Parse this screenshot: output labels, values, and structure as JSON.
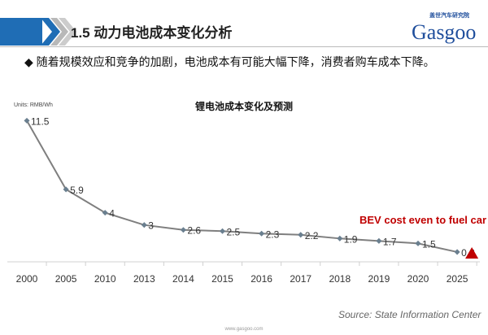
{
  "header": {
    "title": "1.5 动力电池成本变化分析",
    "logo_text": "Gasgoo",
    "logo_subtitle": "盖世汽车研究院"
  },
  "bullet": "◆ 随着规模效应和竞争的加剧，电池成本有可能大幅下降，消费者购车成本下降。",
  "chart_data": {
    "type": "line",
    "title": "锂电池成本变化及预测",
    "units": "Units: RMB/Wh",
    "categories": [
      "2000",
      "2005",
      "2010",
      "2013",
      "2014",
      "2015",
      "2016",
      "2017",
      "2018",
      "2019",
      "2020",
      "2025"
    ],
    "values": [
      11.5,
      5.9,
      4,
      3,
      2.6,
      2.5,
      2.3,
      2.2,
      1.9,
      1.7,
      1.5,
      0.8
    ],
    "labels": [
      "11.5",
      "5.9",
      "4",
      "3",
      "2.6",
      "2.5",
      "2.3",
      "2.2",
      "1.9",
      "1.7",
      "1.5",
      "0.8"
    ],
    "ylim": [
      0,
      12
    ],
    "annotation": "BEV cost even to fuel car",
    "line_color": "#7f7f7f",
    "marker_color": "#c00000"
  },
  "source": "Source: State Information Center",
  "footer": "www.gasgoo.com"
}
